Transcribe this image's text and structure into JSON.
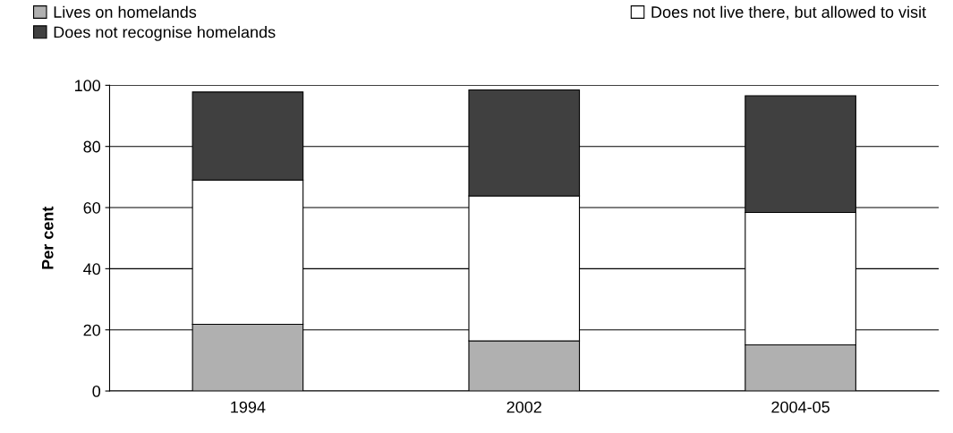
{
  "chart_data": {
    "type": "bar",
    "stacked": true,
    "ylabel": "Per cent",
    "categories": [
      "1994",
      "2002",
      "2004-05"
    ],
    "series": [
      {
        "name": "Lives on homelands",
        "color": "#b0b0b0",
        "values": [
          21.8,
          16.4,
          15.1
        ]
      },
      {
        "name": "Does not live there, but allowed to visit",
        "color": "#ffffff",
        "values": [
          47.2,
          47.4,
          43.3
        ]
      },
      {
        "name": "Does not recognise homelands",
        "color": "#404040",
        "values": [
          28.8,
          34.7,
          38.2
        ]
      }
    ],
    "ylim": [
      0,
      100
    ],
    "yticks": [
      0,
      20,
      40,
      60,
      80,
      100
    ],
    "grid": "y",
    "legend": "top"
  }
}
